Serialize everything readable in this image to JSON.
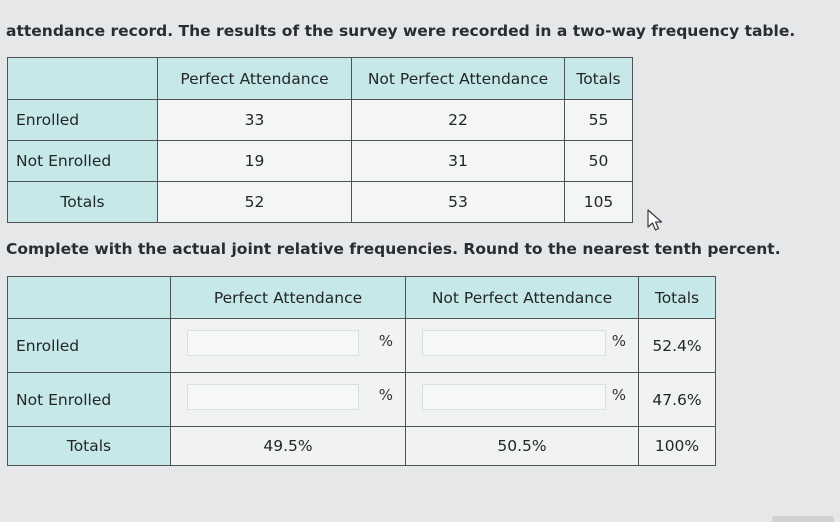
{
  "intro_text": "attendance record. The results of the survey were recorded in a two-way frequency table.",
  "table1": {
    "headers": [
      "",
      "Perfect Attendance",
      "Not Perfect Attendance",
      "Totals"
    ],
    "rows": [
      {
        "label": "Enrolled",
        "values": [
          "33",
          "22",
          "55"
        ]
      },
      {
        "label": "Not Enrolled",
        "values": [
          "19",
          "31",
          "50"
        ]
      },
      {
        "label": "Totals",
        "values": [
          "52",
          "53",
          "105"
        ]
      }
    ]
  },
  "instruction": "Complete with the actual joint relative frequencies. Round to the nearest tenth percent.",
  "table2": {
    "headers": [
      "",
      "Perfect Attendance",
      "Not Perfect Attendance",
      "Totals"
    ],
    "rows": [
      {
        "label": "Enrolled",
        "input1_value": "",
        "input2_value": "",
        "pct_symbol": "%",
        "total": "52.4%"
      },
      {
        "label": "Not Enrolled",
        "input1_value": "",
        "input2_value": "",
        "pct_symbol": "%",
        "total": "47.6%"
      }
    ],
    "totals_row": {
      "label": "Totals",
      "perfect": "49.5%",
      "not_perfect": "50.5%",
      "total": "100%"
    }
  },
  "colors": {
    "header_bg": "#c6e8e9",
    "cell_bg": "#f4f5f5",
    "page_bg": "#e6e7e8",
    "border": "#4f5356"
  }
}
